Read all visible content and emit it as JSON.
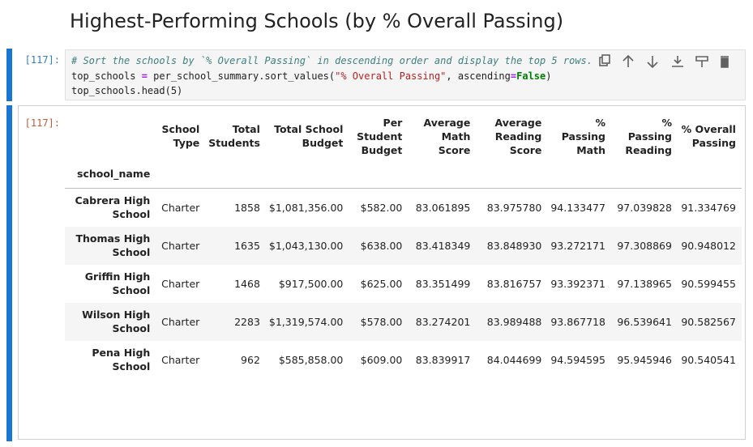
{
  "heading": "Highest-Performing Schools (by % Overall Passing)",
  "input_cell": {
    "prompt": "[117]:",
    "code": {
      "comment": "# Sort the schools by `% Overall Passing` in descending order and display the top 5 rows.",
      "line2": [
        "top_schools ",
        "=",
        " per_school_summary.sort_values(",
        "\"% Overall Passing\"",
        ", ascending",
        "=",
        "False",
        ")"
      ],
      "line3": "top_schools.head(5)"
    }
  },
  "output_cell": {
    "prompt": "[117]:",
    "table": {
      "columns": [
        "School Type",
        "Total Students",
        "Total School Budget",
        "Per Student Budget",
        "Average Math Score",
        "Average Reading Score",
        "% Passing Math",
        "% Passing Reading",
        "% Overall Passing"
      ],
      "index_name": "school_name",
      "rows": [
        {
          "index": "Cabrera High School",
          "cells": [
            "Charter",
            "1858",
            "$1,081,356.00",
            "$582.00",
            "83.061895",
            "83.975780",
            "94.133477",
            "97.039828",
            "91.334769"
          ]
        },
        {
          "index": "Thomas High School",
          "cells": [
            "Charter",
            "1635",
            "$1,043,130.00",
            "$638.00",
            "83.418349",
            "83.848930",
            "93.272171",
            "97.308869",
            "90.948012"
          ]
        },
        {
          "index": "Griffin High School",
          "cells": [
            "Charter",
            "1468",
            "$917,500.00",
            "$625.00",
            "83.351499",
            "83.816757",
            "93.392371",
            "97.138965",
            "90.599455"
          ]
        },
        {
          "index": "Wilson High School",
          "cells": [
            "Charter",
            "2283",
            "$1,319,574.00",
            "$578.00",
            "83.274201",
            "83.989488",
            "93.867718",
            "96.539641",
            "90.582567"
          ]
        },
        {
          "index": "Pena High School",
          "cells": [
            "Charter",
            "962",
            "$585,858.00",
            "$609.00",
            "83.839917",
            "84.044699",
            "94.594595",
            "95.945946",
            "90.540541"
          ]
        }
      ]
    }
  }
}
